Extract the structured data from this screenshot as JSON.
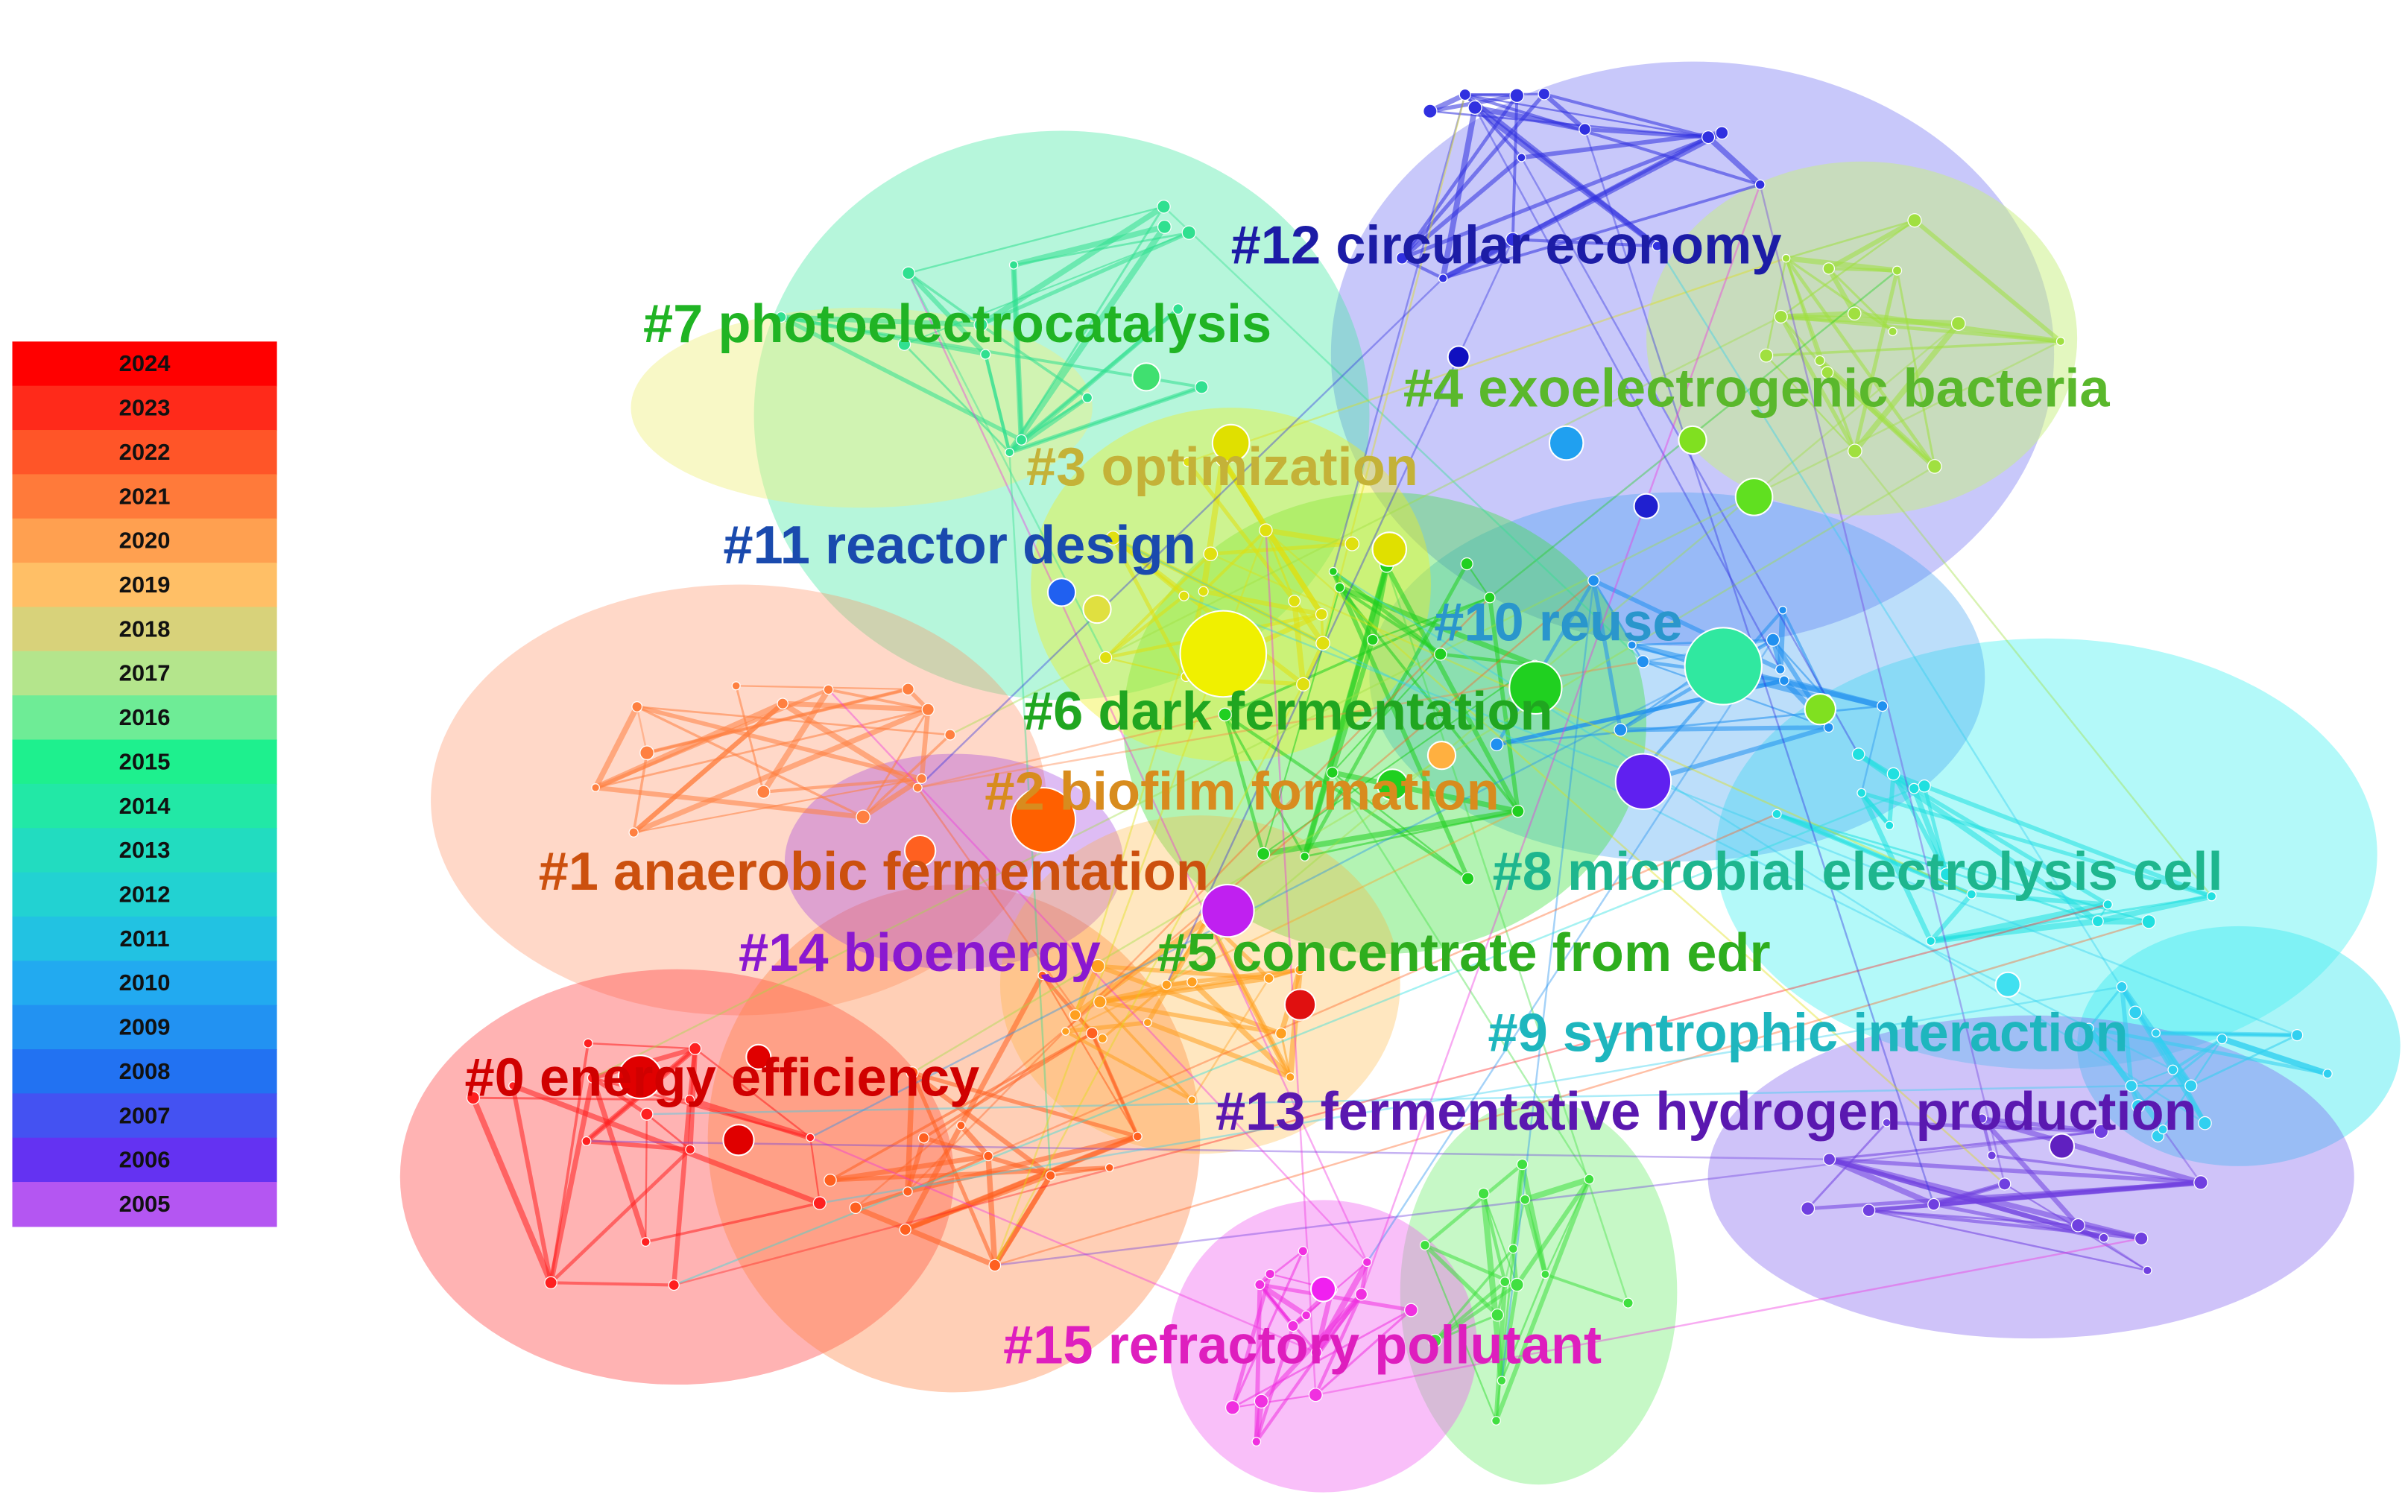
{
  "legend": {
    "items": [
      {
        "label": "2024",
        "color": "#ff0000"
      },
      {
        "label": "2023",
        "color": "#ff2a1a"
      },
      {
        "label": "2022",
        "color": "#ff5528"
      },
      {
        "label": "2021",
        "color": "#ff7a3a"
      },
      {
        "label": "2020",
        "color": "#ffa050"
      },
      {
        "label": "2019",
        "color": "#ffbf66"
      },
      {
        "label": "2018",
        "color": "#d8d27a"
      },
      {
        "label": "2017",
        "color": "#b4e58c"
      },
      {
        "label": "2016",
        "color": "#6eec96"
      },
      {
        "label": "2015",
        "color": "#1ef08e"
      },
      {
        "label": "2014",
        "color": "#22e8a6"
      },
      {
        "label": "2013",
        "color": "#22dcc0"
      },
      {
        "label": "2012",
        "color": "#22d2d2"
      },
      {
        "label": "2011",
        "color": "#22c2e2"
      },
      {
        "label": "2010",
        "color": "#22aaf0"
      },
      {
        "label": "2009",
        "color": "#2292f2"
      },
      {
        "label": "2008",
        "color": "#2272f2"
      },
      {
        "label": "2007",
        "color": "#4452f2"
      },
      {
        "label": "2006",
        "color": "#6432f2"
      },
      {
        "label": "2005",
        "color": "#b456f2"
      }
    ]
  },
  "clusters": [
    {
      "label": "#12 circular economy",
      "color": "#1c1ca6"
    },
    {
      "label": "#7 photoelectrocatalysis",
      "color": "#20b424"
    },
    {
      "label": "#4 exoelectrogenic bacteria",
      "color": "#5ab82c"
    },
    {
      "label": "#3 optimization",
      "color": "#c4b238"
    },
    {
      "label": "#11 reactor design",
      "color": "#1a4aae"
    },
    {
      "label": "#10 reuse",
      "color": "#2a96cc"
    },
    {
      "label": "#6 dark fermentation",
      "color": "#20a620"
    },
    {
      "label": "#2 biofilm formation",
      "color": "#d88c1e"
    },
    {
      "label": "#1 anaerobic fermentation",
      "color": "#cc500e"
    },
    {
      "label": "#8 microbial electrolysis cell",
      "color": "#1eb68e"
    },
    {
      "label": "#14 bioenergy",
      "color": "#8a18d0"
    },
    {
      "label": "#5 concentrate from edr",
      "color": "#2eae1e"
    },
    {
      "label": "#9 syntrophic interaction",
      "color": "#1eb6be"
    },
    {
      "label": "#0 energy efficiency",
      "color": "#d00000"
    },
    {
      "label": "#13 fermentative hydrogen production",
      "color": "#5a18b0"
    },
    {
      "label": "#15 refractory pollutant",
      "color": "#de1ebe"
    }
  ]
}
